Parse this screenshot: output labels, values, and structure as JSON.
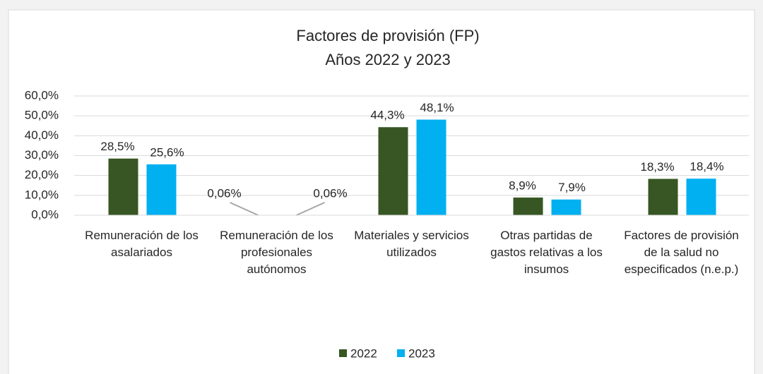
{
  "chart_data": {
    "type": "bar",
    "title": "Factores de provisión (FP)",
    "subtitle": "Años 2022 y 2023",
    "categories": [
      "Remuneración de los asalariados",
      "Remuneración de los profesionales autónomos",
      "Materiales y servicios utilizados",
      "Otras partidas de gastos relativas a los insumos",
      "Factores de provisión de la salud no especificados (n.e.p.)"
    ],
    "series": [
      {
        "name": "2022",
        "color": "#375623",
        "label_color": "#548235",
        "values": [
          28.5,
          0.06,
          44.3,
          8.9,
          18.3
        ],
        "value_labels": [
          "28,5%",
          "0,06%",
          "44,3%",
          "8,9%",
          "18,3%"
        ]
      },
      {
        "name": "2023",
        "color": "#00b0f0",
        "label_color": "#44546a",
        "values": [
          25.6,
          0.06,
          48.1,
          7.9,
          18.4
        ],
        "value_labels": [
          "25,6%",
          "0,06%",
          "48,1%",
          "7,9%",
          "18,4%"
        ]
      }
    ],
    "ylim": [
      0,
      60
    ],
    "yticks": [
      {
        "value": 0,
        "label": "0,0%"
      },
      {
        "value": 10,
        "label": "10,0%"
      },
      {
        "value": 20,
        "label": "20,0%"
      },
      {
        "value": 30,
        "label": "30,0%"
      },
      {
        "value": 40,
        "label": "40,0%"
      },
      {
        "value": 50,
        "label": "50,0%"
      },
      {
        "value": 60,
        "label": "60,0%"
      }
    ],
    "grid": true,
    "legend": "bottom"
  }
}
